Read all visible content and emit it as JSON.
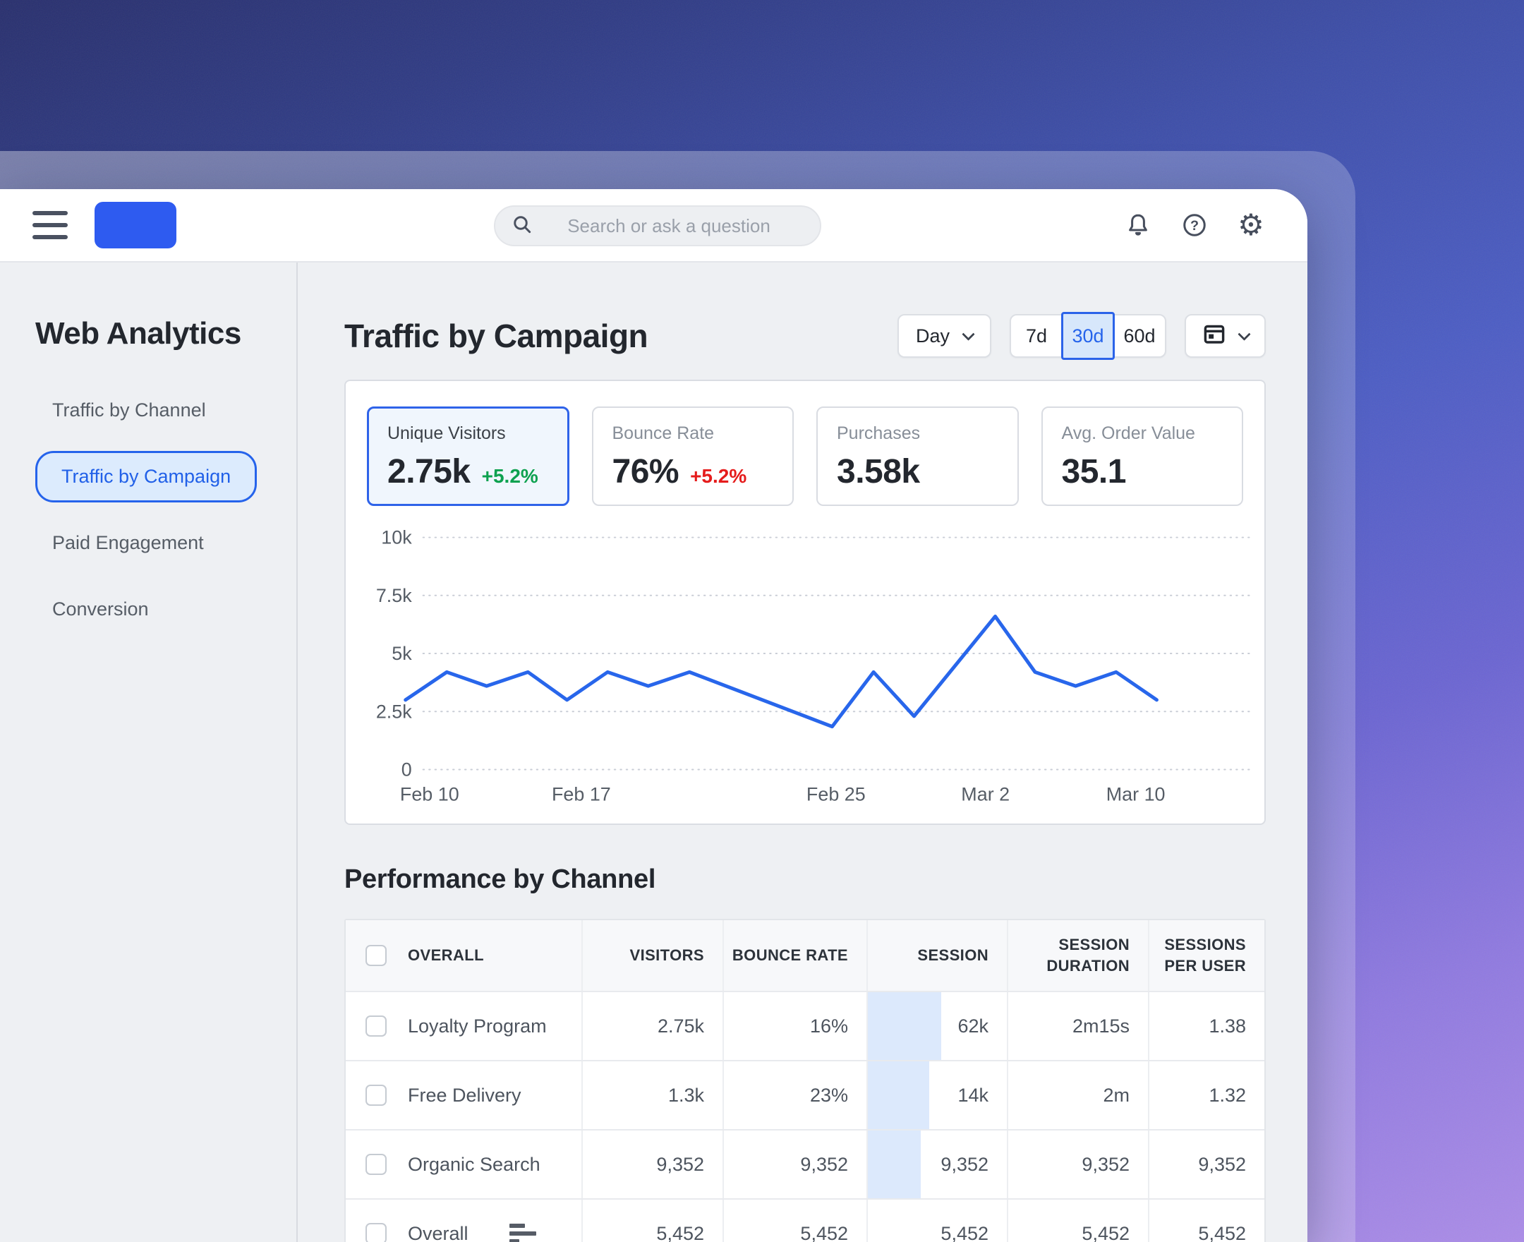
{
  "colors": {
    "accent": "#2563eb",
    "positive": "#0da14f",
    "negative": "#e51c1c",
    "line": "#2866eb",
    "session_bar": "#dce9fc",
    "logo": "#2e5bf0"
  },
  "icons": {
    "menu": "hamburger",
    "search": "magnifier",
    "notifications": "bell",
    "help": "question-circle",
    "settings": "gear",
    "calendar": "calendar",
    "chevron": "chevron-down",
    "overall_row": "rows-bars"
  },
  "topbar": {
    "search_placeholder": "Search or ask a question"
  },
  "sidebar": {
    "title": "Web Analytics",
    "items": [
      {
        "label": "Traffic by Channel",
        "selected": false
      },
      {
        "label": "Traffic by Campaign",
        "selected": true
      },
      {
        "label": "Paid Engagement",
        "selected": false
      },
      {
        "label": "Conversion",
        "selected": false
      }
    ]
  },
  "main": {
    "title": "Traffic by Campaign",
    "controls": {
      "granularity": "Day",
      "ranges": {
        "options": [
          "7d",
          "30d",
          "60d"
        ],
        "selected": "30d"
      }
    }
  },
  "kpis": [
    {
      "label": "Unique Visitors",
      "value": "2.75k",
      "delta": "+5.2%",
      "delta_color": "#0da14f",
      "selected": true
    },
    {
      "label": "Bounce Rate",
      "value": "76%",
      "delta": "+5.2%",
      "delta_color": "#e51c1c",
      "selected": false
    },
    {
      "label": "Purchases",
      "value": "3.58k",
      "delta": "",
      "delta_color": "",
      "selected": false
    },
    {
      "label": "Avg. Order Value",
      "value": "35.1",
      "delta": "",
      "delta_color": "",
      "selected": false
    }
  ],
  "chart_data": {
    "type": "line",
    "series_name": "Unique Visitors",
    "ylim": [
      0,
      10000
    ],
    "grid": "dotted-horizontal",
    "y_ticks": [
      {
        "label": "10k",
        "value": 10000
      },
      {
        "label": "7.5k",
        "value": 7500
      },
      {
        "label": "5k",
        "value": 5000
      },
      {
        "label": "2.5k",
        "value": 2500
      },
      {
        "label": "0",
        "value": 0
      }
    ],
    "x_ticks": [
      {
        "label": "Feb 10",
        "x": 0.032
      },
      {
        "label": "Feb 17",
        "x": 0.234
      },
      {
        "label": "Feb 25",
        "x": 0.573
      },
      {
        "label": "Mar 2",
        "x": 0.772
      },
      {
        "label": "Mar 10",
        "x": 0.972
      }
    ],
    "points": [
      {
        "x": 0.0,
        "value": 3000
      },
      {
        "x": 0.055,
        "value": 4200
      },
      {
        "x": 0.108,
        "value": 3600
      },
      {
        "x": 0.163,
        "value": 4200
      },
      {
        "x": 0.215,
        "value": 3000
      },
      {
        "x": 0.269,
        "value": 4200
      },
      {
        "x": 0.323,
        "value": 3600
      },
      {
        "x": 0.378,
        "value": 4200
      },
      {
        "x": 0.568,
        "value": 1850
      },
      {
        "x": 0.623,
        "value": 4200
      },
      {
        "x": 0.677,
        "value": 2300
      },
      {
        "x": 0.785,
        "value": 6600
      },
      {
        "x": 0.838,
        "value": 4200
      },
      {
        "x": 0.892,
        "value": 3600
      },
      {
        "x": 0.946,
        "value": 4200
      },
      {
        "x": 1.0,
        "value": 3000
      }
    ]
  },
  "table": {
    "title": "Performance by Channel",
    "columns": [
      "OVERALL",
      "VISITORS",
      "BOUNCE RATE",
      "SESSION",
      "SESSION DURATION",
      "SESSIONS PER USER"
    ],
    "rows": [
      {
        "name": "Loyalty Program",
        "cells": [
          "2.75k",
          "16%",
          "62k",
          "2m15s",
          "1.38"
        ],
        "session_bar": 0.53,
        "has_icon": false
      },
      {
        "name": "Free Delivery",
        "cells": [
          "1.3k",
          "23%",
          "14k",
          "2m",
          "1.32"
        ],
        "session_bar": 0.44,
        "has_icon": false
      },
      {
        "name": "Organic Search",
        "cells": [
          "9,352",
          "9,352",
          "9,352",
          "9,352",
          "9,352"
        ],
        "session_bar": 0.38,
        "has_icon": false
      },
      {
        "name": "Overall",
        "cells": [
          "5,452",
          "5,452",
          "5,452",
          "5,452",
          "5,452"
        ],
        "session_bar": 0,
        "has_icon": true
      }
    ]
  }
}
